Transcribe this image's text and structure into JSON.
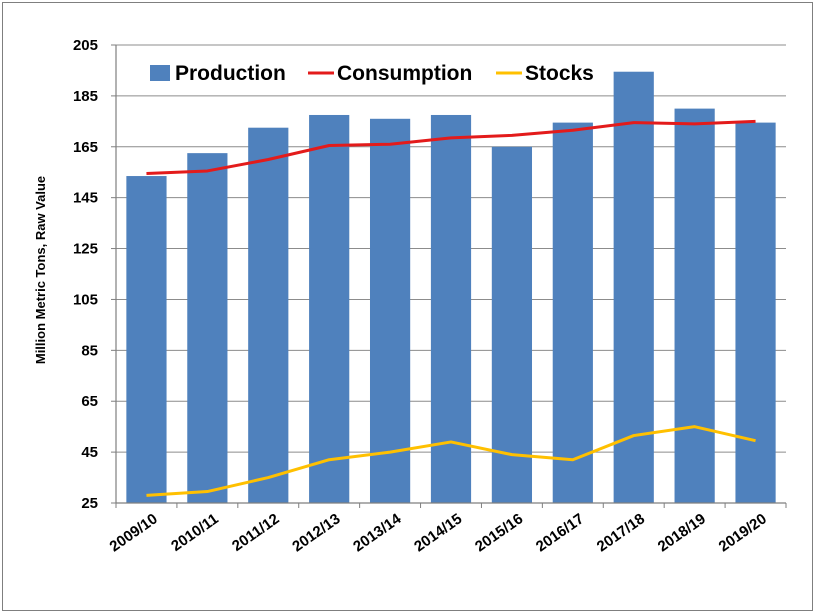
{
  "chart_data": {
    "type": "bar",
    "title": "",
    "xlabel": "",
    "ylabel": "Million Metric Tons, Raw Value",
    "ylim": [
      25,
      205
    ],
    "yticks": [
      25,
      45,
      65,
      85,
      105,
      125,
      145,
      165,
      185,
      205
    ],
    "grid": true,
    "legend_position": "top-left",
    "categories": [
      "2009/10",
      "2010/11",
      "2011/12",
      "2012/13",
      "2013/14",
      "2014/15",
      "2015/16",
      "2016/17",
      "2017/18",
      "2018/19",
      "2019/20"
    ],
    "series": [
      {
        "name": "Production",
        "type": "bar",
        "color": "#4f81bd",
        "values": [
          153.5,
          162.5,
          172.5,
          177.5,
          176,
          177.5,
          165,
          174.5,
          194.5,
          180,
          174.5
        ]
      },
      {
        "name": "Consumption",
        "type": "line",
        "color": "#e31b1b",
        "values": [
          154.5,
          155.5,
          160,
          165.5,
          166,
          168.5,
          169.5,
          171.5,
          174.5,
          174,
          175
        ]
      },
      {
        "name": "Stocks",
        "type": "line",
        "color": "#ffc000",
        "values": [
          28,
          29.5,
          35,
          42,
          45,
          49,
          44,
          42,
          51.5,
          55,
          49.5
        ]
      }
    ]
  }
}
